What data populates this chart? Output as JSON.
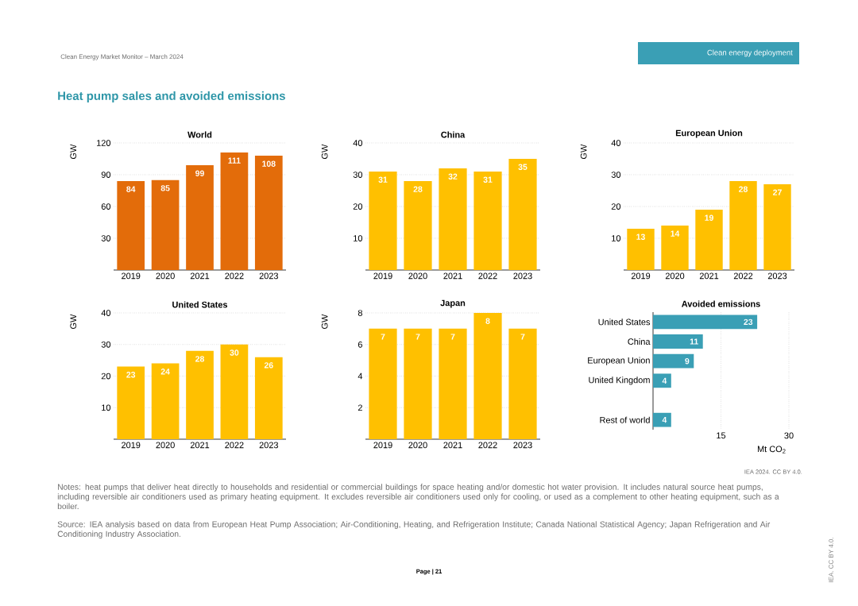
{
  "chart_data": [
    {
      "type": "bar",
      "title": "World",
      "ylabel": "GW",
      "categories": [
        "2019",
        "2020",
        "2021",
        "2022",
        "2023"
      ],
      "values": [
        84,
        85,
        99,
        111,
        108
      ],
      "color": "#e36c0a",
      "ylim": [
        0,
        120
      ],
      "yticks": [
        30,
        60,
        90,
        120
      ],
      "grid": "y",
      "data_labels": true,
      "annotations": [
        "Clean Energy Market Monitor – March 2024",
        "Clean energy deployment",
        "Heat pump sales and avoided emissions",
        "Notes: heat pumps that deliver heat directly to households and residential or commercial buildings for space heating and/or domestic hot water provision. It includes natural source heat pumps, including reversible air conditioners used as primary heating equipment. It excludes reversible air conditioners used only for cooling, or used as a complement to other heating equipment, such as a boiler.",
        "Source: IEA analysis based on data from European Heat Pump Association; Air-Conditioning, Heating, and Refrigeration Institute; Canada National Statistical Agency; Japan Refrigeration and Air Conditioning Industry Association.",
        "Page | 21"
      ]
    },
    {
      "type": "bar",
      "title": "China",
      "ylabel": "GW",
      "categories": [
        "2019",
        "2020",
        "2021",
        "2022",
        "2023"
      ],
      "values": [
        31,
        28,
        32,
        31,
        35
      ],
      "color": "#ffc000",
      "ylim": [
        0,
        40
      ],
      "yticks": [
        10,
        20,
        30,
        40
      ],
      "grid": "y",
      "data_labels": true
    },
    {
      "type": "bar",
      "title": "European Union",
      "ylabel": "GW",
      "categories": [
        "2019",
        "2020",
        "2021",
        "2022",
        "2023"
      ],
      "values": [
        13,
        14,
        19,
        28,
        27
      ],
      "color": "#ffc000",
      "ylim": [
        0,
        40
      ],
      "yticks": [
        10,
        20,
        30,
        40
      ],
      "grid": "y",
      "data_labels": true
    },
    {
      "type": "bar",
      "title": "United States",
      "ylabel": "GW",
      "categories": [
        "2019",
        "2020",
        "2021",
        "2022",
        "2023"
      ],
      "values": [
        23,
        24,
        28,
        30,
        26
      ],
      "color": "#ffc000",
      "ylim": [
        0,
        40
      ],
      "yticks": [
        10,
        20,
        30,
        40
      ],
      "grid": "y",
      "data_labels": true
    },
    {
      "type": "bar",
      "title": "Japan",
      "ylabel": "GW",
      "categories": [
        "2019",
        "2020",
        "2021",
        "2022",
        "2023"
      ],
      "values": [
        7,
        7,
        7,
        8,
        7
      ],
      "color": "#ffc000",
      "ylim": [
        0,
        8
      ],
      "yticks": [
        2,
        4,
        6,
        8
      ],
      "grid": "y",
      "data_labels": true
    },
    {
      "type": "bar",
      "orientation": "horizontal",
      "title": "Avoided emissions",
      "xlabel": "Mt CO$_{2}$",
      "categories": [
        "United States",
        "China",
        "European Union",
        "United Kingdom",
        null,
        "Rest of world"
      ],
      "values": [
        23,
        11,
        9,
        4,
        null,
        4
      ],
      "color": "#3a9fb5",
      "xlim": [
        0,
        30
      ],
      "xticks": [
        15,
        30
      ],
      "grid": "x",
      "data_labels": true,
      "annotations": [
        "IEA 2024. CC BY 4.0.",
        "IEA. CC BY 4.0."
      ]
    }
  ]
}
